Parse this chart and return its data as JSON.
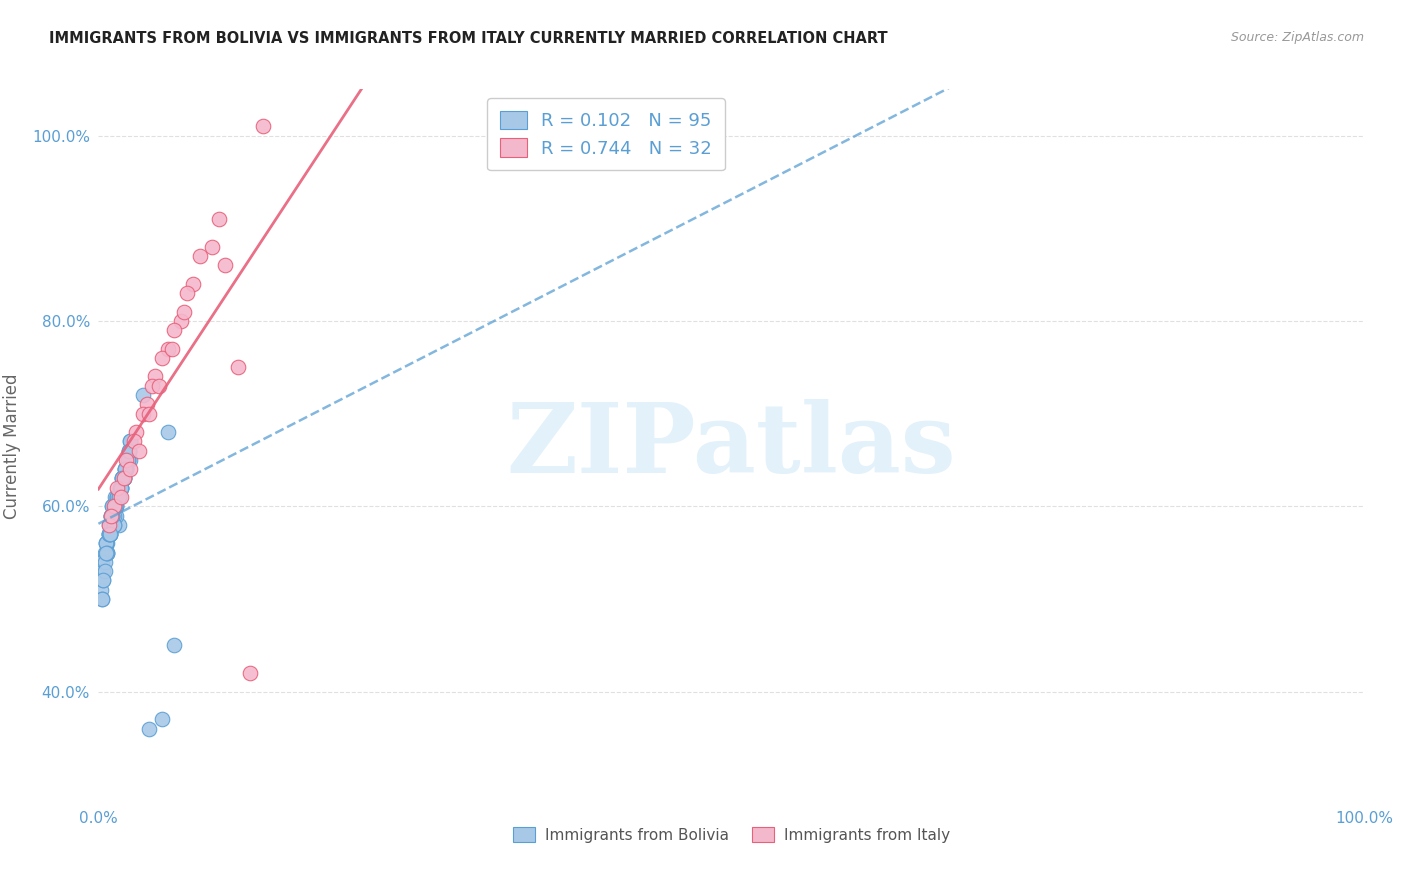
{
  "title": "IMMIGRANTS FROM BOLIVIA VS IMMIGRANTS FROM ITALY CURRENTLY MARRIED CORRELATION CHART",
  "source": "Source: ZipAtlas.com",
  "ylabel": "Currently Married",
  "bolivia_color": "#a8c8e8",
  "italy_color": "#f4b8cc",
  "bolivia_edge_color": "#5a9fd4",
  "italy_edge_color": "#e8607a",
  "bolivia_line_color": "#5a9fd4",
  "italy_line_color": "#e8607a",
  "bolivia_R": 0.102,
  "bolivia_N": 95,
  "italy_R": 0.744,
  "italy_N": 32,
  "watermark_text": "ZIPatlas",
  "watermark_color": "#d0e8f8",
  "background_color": "#ffffff",
  "grid_color": "#e0e0e0",
  "title_color": "#222222",
  "source_color": "#999999",
  "tick_color": "#5a9fd4",
  "ylabel_color": "#666666",
  "xlim": [
    0.0,
    1.0
  ],
  "ylim": [
    0.28,
    1.05
  ],
  "ytick_positions": [
    0.4,
    0.6,
    0.8,
    1.0
  ],
  "ytick_labels": [
    "40.0%",
    "60.0%",
    "80.0%",
    "100.0%"
  ],
  "xtick_positions": [
    0.0,
    0.2,
    0.4,
    0.6,
    0.8,
    1.0
  ],
  "xtick_labels": [
    "0.0%",
    "",
    "",
    "",
    "",
    "100.0%"
  ],
  "bolivia_x": [
    0.01,
    0.015,
    0.008,
    0.02,
    0.012,
    0.005,
    0.018,
    0.025,
    0.007,
    0.003,
    0.011,
    0.016,
    0.009,
    0.013,
    0.022,
    0.006,
    0.004,
    0.019,
    0.014,
    0.021,
    0.008,
    0.017,
    0.01,
    0.024,
    0.002,
    0.015,
    0.011,
    0.007,
    0.02,
    0.013,
    0.006,
    0.018,
    0.009,
    0.023,
    0.012,
    0.016,
    0.005,
    0.021,
    0.01,
    0.004,
    0.014,
    0.019,
    0.008,
    0.025,
    0.011,
    0.017,
    0.003,
    0.022,
    0.015,
    0.009,
    0.013,
    0.007,
    0.02,
    0.006,
    0.016,
    0.012,
    0.024,
    0.01,
    0.018,
    0.005,
    0.014,
    0.021,
    0.008,
    0.023,
    0.011,
    0.019,
    0.004,
    0.017,
    0.009,
    0.015,
    0.013,
    0.022,
    0.007,
    0.02,
    0.016,
    0.003,
    0.012,
    0.01,
    0.025,
    0.006,
    0.018,
    0.014,
    0.021,
    0.008,
    0.011,
    0.019,
    0.016,
    0.024,
    0.009,
    0.013,
    0.035,
    0.04,
    0.05,
    0.06,
    0.055
  ],
  "bolivia_y": [
    0.59,
    0.61,
    0.57,
    0.63,
    0.6,
    0.55,
    0.62,
    0.65,
    0.56,
    0.54,
    0.6,
    0.58,
    0.57,
    0.61,
    0.64,
    0.56,
    0.53,
    0.63,
    0.59,
    0.64,
    0.58,
    0.62,
    0.59,
    0.66,
    0.51,
    0.61,
    0.6,
    0.55,
    0.63,
    0.6,
    0.56,
    0.62,
    0.57,
    0.65,
    0.59,
    0.61,
    0.54,
    0.64,
    0.58,
    0.52,
    0.6,
    0.63,
    0.57,
    0.67,
    0.59,
    0.62,
    0.5,
    0.64,
    0.61,
    0.57,
    0.6,
    0.55,
    0.63,
    0.56,
    0.61,
    0.58,
    0.66,
    0.59,
    0.62,
    0.53,
    0.6,
    0.64,
    0.57,
    0.65,
    0.59,
    0.63,
    0.52,
    0.62,
    0.57,
    0.61,
    0.6,
    0.64,
    0.55,
    0.63,
    0.61,
    0.5,
    0.58,
    0.59,
    0.67,
    0.55,
    0.62,
    0.6,
    0.64,
    0.57,
    0.59,
    0.63,
    0.61,
    0.66,
    0.57,
    0.6,
    0.72,
    0.36,
    0.37,
    0.45,
    0.68
  ],
  "italy_x": [
    0.008,
    0.015,
    0.022,
    0.03,
    0.038,
    0.045,
    0.055,
    0.065,
    0.075,
    0.09,
    0.012,
    0.02,
    0.028,
    0.035,
    0.042,
    0.05,
    0.06,
    0.07,
    0.08,
    0.095,
    0.018,
    0.025,
    0.032,
    0.04,
    0.048,
    0.058,
    0.068,
    0.1,
    0.11,
    0.12,
    0.01,
    0.13
  ],
  "italy_y": [
    0.58,
    0.62,
    0.65,
    0.68,
    0.71,
    0.74,
    0.77,
    0.8,
    0.84,
    0.88,
    0.6,
    0.63,
    0.67,
    0.7,
    0.73,
    0.76,
    0.79,
    0.83,
    0.87,
    0.91,
    0.61,
    0.64,
    0.66,
    0.7,
    0.73,
    0.77,
    0.81,
    0.86,
    0.75,
    0.42,
    0.59,
    1.01
  ]
}
